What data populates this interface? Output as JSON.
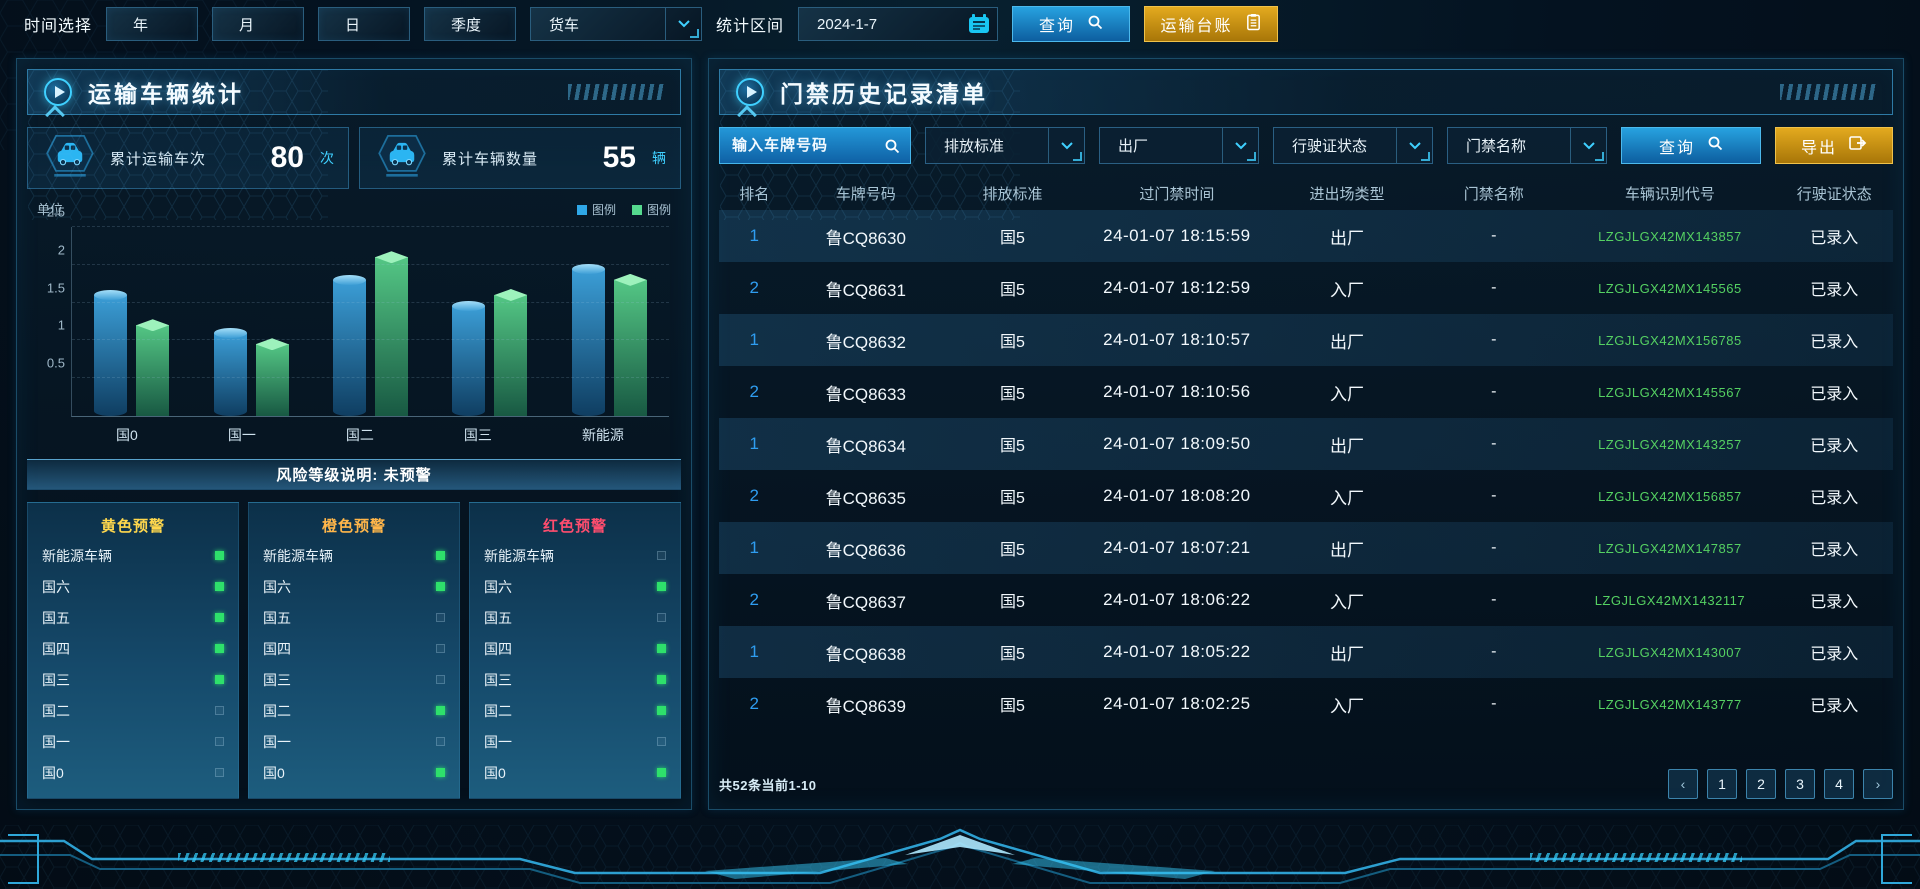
{
  "topbar": {
    "time_label": "时间选择",
    "time_buttons": [
      {
        "id": "year",
        "label": "年"
      },
      {
        "id": "month",
        "label": "月"
      },
      {
        "id": "day",
        "label": "日"
      },
      {
        "id": "quarter",
        "label": "季度"
      }
    ],
    "vehicle_select": {
      "value": "货车"
    },
    "range_label": "统计区间",
    "date_input": {
      "value": "2024-1-7"
    },
    "query_button": "查询",
    "ledger_button": "运输台账"
  },
  "left_panel": {
    "title": "运输车辆统计",
    "stats": [
      {
        "label": "累计运输车次",
        "value": "80",
        "unit": "次"
      },
      {
        "label": "累计车辆数量",
        "value": "55",
        "unit": "辆"
      }
    ],
    "risk_note": "风险等级说明: 未预警",
    "warning_columns": [
      {
        "id": "yellow",
        "title": "黄色预警",
        "title_color": "#ffd84d",
        "items": [
          {
            "label": "新能源车辆",
            "active": true
          },
          {
            "label": "国六",
            "active": true
          },
          {
            "label": "国五",
            "active": true
          },
          {
            "label": "国四",
            "active": true
          },
          {
            "label": "国三",
            "active": true
          },
          {
            "label": "国二",
            "active": false
          },
          {
            "label": "国一",
            "active": false
          },
          {
            "label": "国0",
            "active": false
          }
        ]
      },
      {
        "id": "orange",
        "title": "橙色预警",
        "title_color": "#ffb64a",
        "items": [
          {
            "label": "新能源车辆",
            "active": true
          },
          {
            "label": "国六",
            "active": true
          },
          {
            "label": "国五",
            "active": false
          },
          {
            "label": "国四",
            "active": false
          },
          {
            "label": "国三",
            "active": false
          },
          {
            "label": "国二",
            "active": true
          },
          {
            "label": "国一",
            "active": false
          },
          {
            "label": "国0",
            "active": true
          }
        ]
      },
      {
        "id": "red",
        "title": "红色预警",
        "title_color": "#ff4d6e",
        "items": [
          {
            "label": "新能源车辆",
            "active": false
          },
          {
            "label": "国六",
            "active": true
          },
          {
            "label": "国五",
            "active": false
          },
          {
            "label": "国四",
            "active": true
          },
          {
            "label": "国三",
            "active": true
          },
          {
            "label": "国二",
            "active": true
          },
          {
            "label": "国一",
            "active": false
          },
          {
            "label": "国0",
            "active": true
          }
        ]
      }
    ]
  },
  "chart_data": {
    "type": "bar",
    "unit_label": "单位",
    "categories": [
      "国0",
      "国一",
      "国二",
      "国三",
      "新能源"
    ],
    "series": [
      {
        "name": "图例",
        "color": "#2fa8e8",
        "values": [
          1.6,
          1.1,
          1.8,
          1.45,
          1.95
        ]
      },
      {
        "name": "图例",
        "color": "#55d98e",
        "values": [
          1.2,
          0.95,
          2.1,
          1.6,
          1.8
        ]
      }
    ],
    "ylim": [
      0,
      2.5
    ],
    "yticks": [
      0.5,
      1,
      1.5,
      2,
      2.5
    ],
    "grid": "dashed-horizontal",
    "legend_position": "top-right"
  },
  "right_panel": {
    "title": "门禁历史记录清单",
    "filters": {
      "plate_input_placeholder": "输入车牌号码",
      "dropdowns": [
        {
          "id": "emission-standard",
          "label": "排放标准"
        },
        {
          "id": "factory-direction",
          "label": "出厂"
        },
        {
          "id": "license-status",
          "label": "行驶证状态"
        },
        {
          "id": "gate-name",
          "label": "门禁名称"
        }
      ],
      "query_button": "查询",
      "export_button": "导出"
    },
    "table": {
      "headers": [
        "排名",
        "车牌号码",
        "排放标准",
        "过门禁时间",
        "进出场类型",
        "门禁名称",
        "车辆识别代号",
        "行驶证状态"
      ],
      "rows": [
        {
          "rank": "1",
          "plate": "鲁CQ8630",
          "emission": "国5",
          "time": "24-01-07 18:15:59",
          "direction": "出厂",
          "gate": "-",
          "vin": "LZGJLGX42MX143857",
          "license_status": "已录入"
        },
        {
          "rank": "2",
          "plate": "鲁CQ8631",
          "emission": "国5",
          "time": "24-01-07 18:12:59",
          "direction": "入厂",
          "gate": "-",
          "vin": "LZGJLGX42MX145565",
          "license_status": "已录入"
        },
        {
          "rank": "1",
          "plate": "鲁CQ8632",
          "emission": "国5",
          "time": "24-01-07 18:10:57",
          "direction": "出厂",
          "gate": "-",
          "vin": "LZGJLGX42MX156785",
          "license_status": "已录入"
        },
        {
          "rank": "2",
          "plate": "鲁CQ8633",
          "emission": "国5",
          "time": "24-01-07 18:10:56",
          "direction": "入厂",
          "gate": "-",
          "vin": "LZGJLGX42MX145567",
          "license_status": "已录入"
        },
        {
          "rank": "1",
          "plate": "鲁CQ8634",
          "emission": "国5",
          "time": "24-01-07 18:09:50",
          "direction": "出厂",
          "gate": "-",
          "vin": "LZGJLGX42MX143257",
          "license_status": "已录入"
        },
        {
          "rank": "2",
          "plate": "鲁CQ8635",
          "emission": "国5",
          "time": "24-01-07 18:08:20",
          "direction": "入厂",
          "gate": "-",
          "vin": "LZGJLGX42MX156857",
          "license_status": "已录入"
        },
        {
          "rank": "1",
          "plate": "鲁CQ8636",
          "emission": "国5",
          "time": "24-01-07 18:07:21",
          "direction": "出厂",
          "gate": "-",
          "vin": "LZGJLGX42MX147857",
          "license_status": "已录入"
        },
        {
          "rank": "2",
          "plate": "鲁CQ8637",
          "emission": "国5",
          "time": "24-01-07 18:06:22",
          "direction": "入厂",
          "gate": "-",
          "vin": "LZGJLGX42MX1432117",
          "license_status": "已录入"
        },
        {
          "rank": "1",
          "plate": "鲁CQ8638",
          "emission": "国5",
          "time": "24-01-07 18:05:22",
          "direction": "出厂",
          "gate": "-",
          "vin": "LZGJLGX42MX143007",
          "license_status": "已录入"
        },
        {
          "rank": "2",
          "plate": "鲁CQ8639",
          "emission": "国5",
          "time": "24-01-07 18:02:25",
          "direction": "入厂",
          "gate": "-",
          "vin": "LZGJLGX42MX143777",
          "license_status": "已录入"
        }
      ]
    },
    "footer": {
      "summary": "共52条当前1-10",
      "pagination": {
        "prev": "‹",
        "pages": [
          "1",
          "2",
          "3",
          "4"
        ],
        "next": "›"
      }
    }
  }
}
